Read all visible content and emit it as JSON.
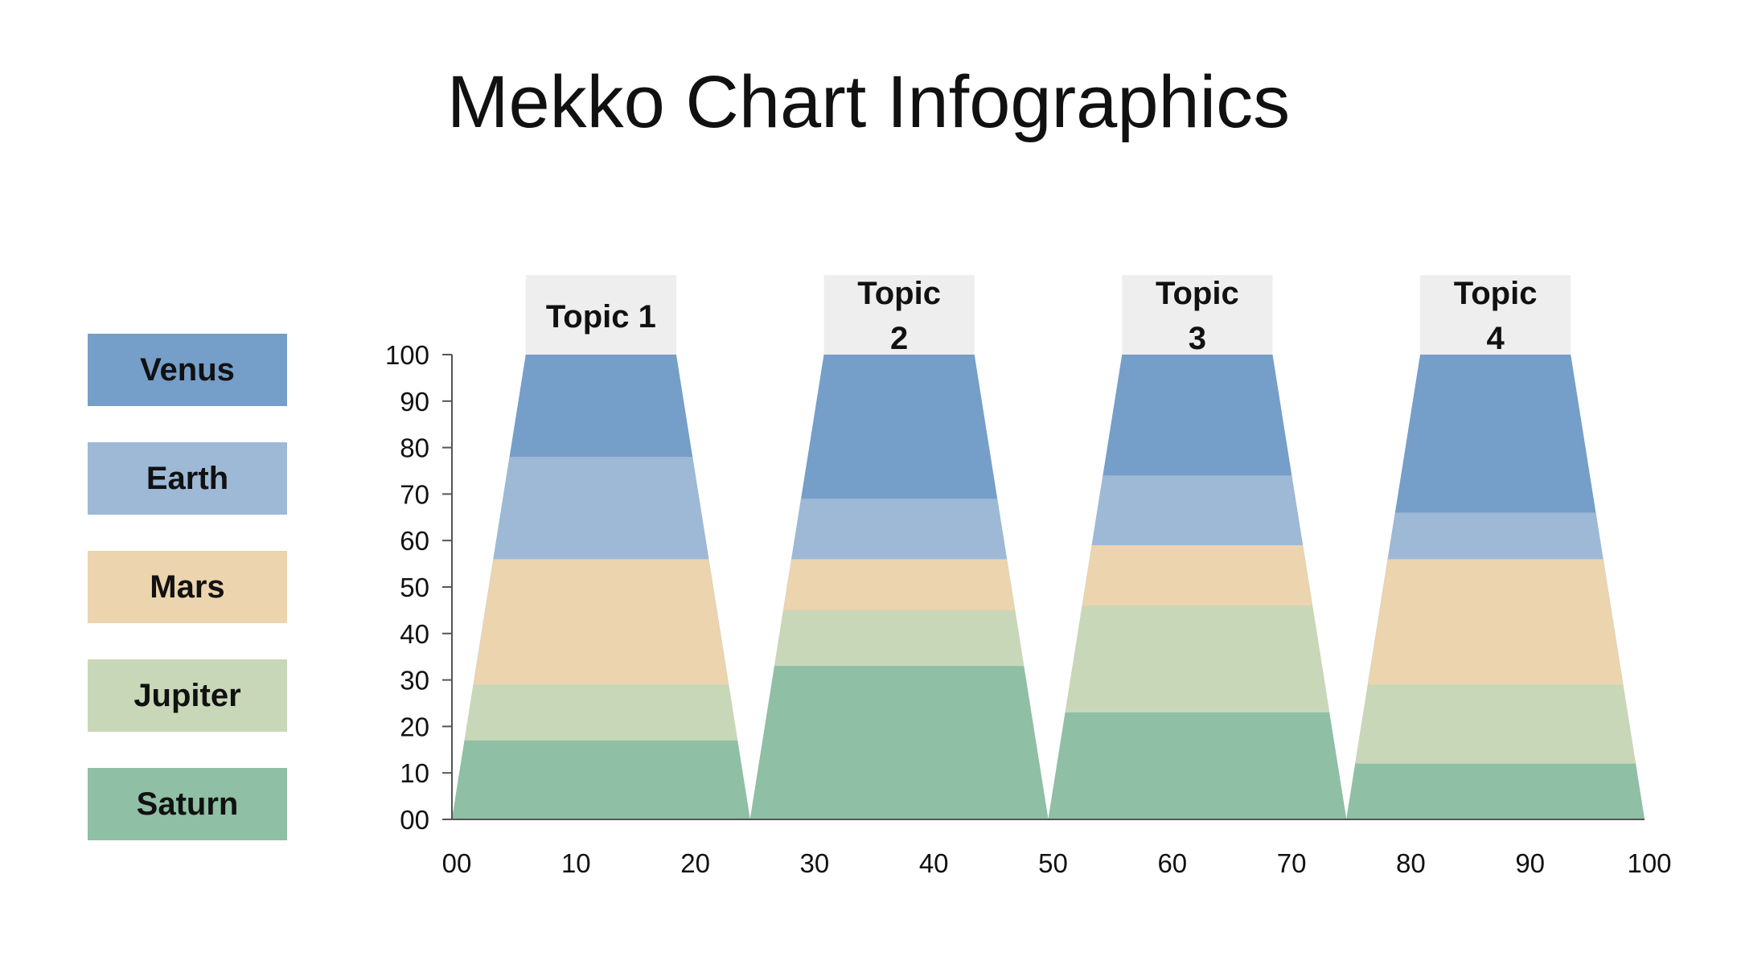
{
  "title": "Mekko Chart Infographics",
  "colors": {
    "Venus": "#759ec9",
    "Earth": "#9db9d6",
    "Mars": "#ebd4ae",
    "Jupiter": "#c9d7b9",
    "Saturn": "#8fbfa5",
    "topic_box": "#eeeeee",
    "axis": "#555555"
  },
  "legend": [
    {
      "label": "Venus",
      "color": "#759ec9"
    },
    {
      "label": "Earth",
      "color": "#9db9d6"
    },
    {
      "label": "Mars",
      "color": "#ebd4ae"
    },
    {
      "label": "Jupiter",
      "color": "#c9d7b9"
    },
    {
      "label": "Saturn",
      "color": "#8fbfa5"
    }
  ],
  "chart_data": {
    "type": "area",
    "title": "Mekko Chart Infographics",
    "xlim": [
      0,
      100
    ],
    "ylim": [
      0,
      100
    ],
    "x_ticks": [
      "00",
      "10",
      "20",
      "30",
      "40",
      "50",
      "60",
      "70",
      "80",
      "90",
      "100"
    ],
    "y_ticks": [
      "00",
      "10",
      "20",
      "30",
      "40",
      "50",
      "60",
      "70",
      "80",
      "90",
      "100"
    ],
    "grid": false,
    "legend_position": "left",
    "topics": [
      {
        "label_lines": [
          "Topic 1"
        ],
        "x_start": 0,
        "x_end": 25,
        "tops": {
          "Saturn": 17,
          "Jupiter": 29,
          "Mars": 56,
          "Earth": 78,
          "Venus": 100
        }
      },
      {
        "label_lines": [
          "Topic",
          "2"
        ],
        "x_start": 25,
        "x_end": 50,
        "tops": {
          "Saturn": 33,
          "Jupiter": 45,
          "Mars": 56,
          "Earth": 69,
          "Venus": 100
        }
      },
      {
        "label_lines": [
          "Topic",
          "3"
        ],
        "x_start": 50,
        "x_end": 75,
        "tops": {
          "Saturn": 23,
          "Jupiter": 46,
          "Mars": 59,
          "Earth": 74,
          "Venus": 100
        }
      },
      {
        "label_lines": [
          "Topic",
          "4"
        ],
        "x_start": 75,
        "x_end": 100,
        "tops": {
          "Saturn": 12,
          "Jupiter": 29,
          "Mars": 56,
          "Earth": 66,
          "Venus": 100
        }
      }
    ]
  }
}
